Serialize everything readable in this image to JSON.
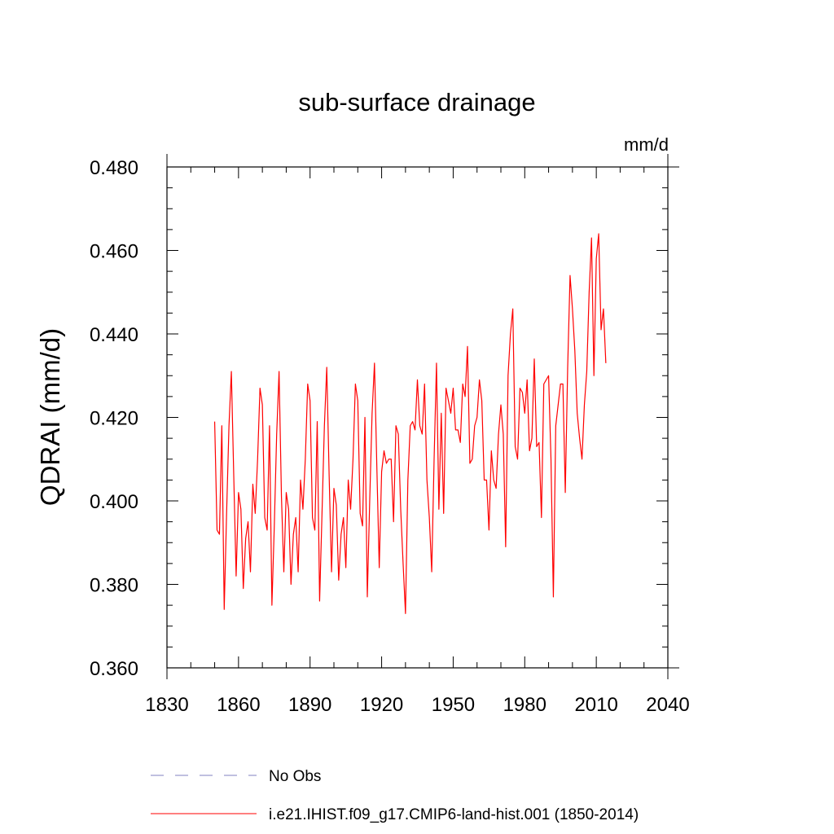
{
  "chart_data": {
    "type": "line",
    "title": "sub-surface drainage",
    "units": "mm/d",
    "ylabel": "QDRAI  (mm/d)",
    "xlabel": "",
    "xlim": [
      1830,
      2040
    ],
    "ylim": [
      0.36,
      0.48
    ],
    "x_ticks": [
      1830,
      1860,
      1890,
      1920,
      1950,
      1980,
      2010,
      2040
    ],
    "x_tick_labels": [
      "1830",
      "1860",
      "1890",
      "1920",
      "1950",
      "1980",
      "2010",
      "2040"
    ],
    "y_ticks": [
      0.36,
      0.38,
      0.4,
      0.42,
      0.44,
      0.46,
      0.48
    ],
    "y_tick_labels": [
      "0.360",
      "0.380",
      "0.400",
      "0.420",
      "0.440",
      "0.460",
      "0.480"
    ],
    "grid": false,
    "legend_position": "bottom",
    "series": [
      {
        "name": "No Obs",
        "color": "#8080c0",
        "style": "dashed",
        "values": []
      },
      {
        "name": "i.e21.IHIST.f09_g17.CMIP6-land-hist.001 (1850-2014)",
        "color": "#ff0000",
        "style": "solid",
        "x_start": 1850,
        "values": [
          0.419,
          0.393,
          0.392,
          0.418,
          0.374,
          0.397,
          0.418,
          0.431,
          0.406,
          0.382,
          0.402,
          0.398,
          0.379,
          0.391,
          0.395,
          0.383,
          0.404,
          0.397,
          0.41,
          0.427,
          0.423,
          0.396,
          0.393,
          0.418,
          0.375,
          0.394,
          0.416,
          0.431,
          0.401,
          0.383,
          0.402,
          0.398,
          0.38,
          0.392,
          0.396,
          0.383,
          0.405,
          0.398,
          0.41,
          0.428,
          0.424,
          0.396,
          0.393,
          0.419,
          0.376,
          0.397,
          0.418,
          0.432,
          0.406,
          0.383,
          0.403,
          0.399,
          0.381,
          0.392,
          0.396,
          0.384,
          0.405,
          0.398,
          0.41,
          0.428,
          0.424,
          0.397,
          0.394,
          0.42,
          0.377,
          0.4,
          0.421,
          0.433,
          0.408,
          0.384,
          0.407,
          0.412,
          0.409,
          0.41,
          0.41,
          0.395,
          0.418,
          0.416,
          0.398,
          0.385,
          0.373,
          0.405,
          0.418,
          0.419,
          0.417,
          0.429,
          0.418,
          0.416,
          0.428,
          0.405,
          0.396,
          0.383,
          0.41,
          0.433,
          0.398,
          0.421,
          0.397,
          0.427,
          0.424,
          0.421,
          0.427,
          0.417,
          0.417,
          0.414,
          0.428,
          0.425,
          0.437,
          0.409,
          0.41,
          0.418,
          0.42,
          0.429,
          0.424,
          0.405,
          0.405,
          0.393,
          0.412,
          0.405,
          0.403,
          0.416,
          0.423,
          0.416,
          0.389,
          0.43,
          0.44,
          0.446,
          0.413,
          0.41,
          0.427,
          0.426,
          0.421,
          0.429,
          0.412,
          0.415,
          0.434,
          0.413,
          0.414,
          0.396,
          0.428,
          0.429,
          0.43,
          0.41,
          0.377,
          0.418,
          0.423,
          0.428,
          0.428,
          0.402,
          0.432,
          0.454,
          0.446,
          0.436,
          0.421,
          0.415,
          0.41,
          0.423,
          0.431,
          0.45,
          0.463,
          0.43,
          0.458,
          0.464,
          0.441,
          0.446,
          0.433
        ]
      }
    ]
  }
}
